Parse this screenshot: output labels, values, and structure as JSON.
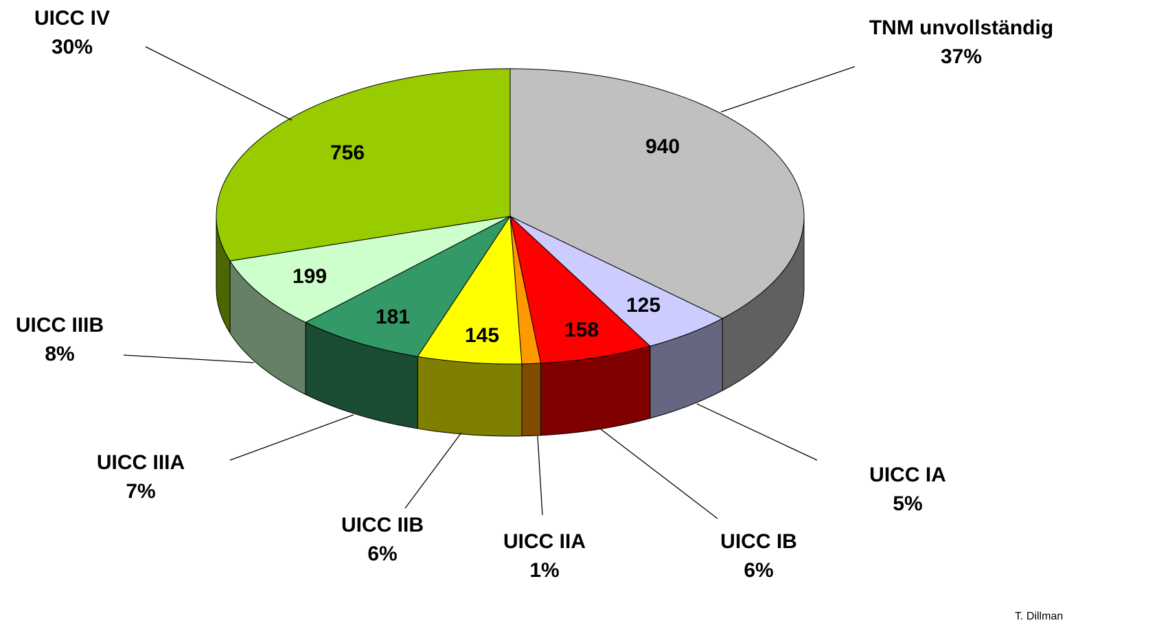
{
  "chart_data": {
    "type": "pie3d",
    "categories": [
      "TNM unvollständig",
      "UICC IA",
      "UICC IB",
      "UICC IIA",
      "UICC IIB",
      "UICC IIIA",
      "UICC IIIB",
      "UICC IV"
    ],
    "values": [
      940,
      125,
      158,
      26,
      145,
      181,
      199,
      756
    ],
    "value_labels": [
      "940",
      "125",
      "158",
      null,
      "145",
      "181",
      "199",
      "756"
    ],
    "percent_labels": [
      "37%",
      "5%",
      "6%",
      "1%",
      "6%",
      "7%",
      "8%",
      "30%"
    ],
    "colors": [
      "#c0c0c0",
      "#ccccff",
      "#ff0000",
      "#ff9900",
      "#ffff00",
      "#339966",
      "#ccffcc",
      "#99cc00"
    ],
    "side_colors": [
      "#606060",
      "#666680",
      "#800000",
      "#804c00",
      "#808000",
      "#1a4c33",
      "#668066",
      "#4c6600"
    ],
    "source": "T. Dillman"
  }
}
